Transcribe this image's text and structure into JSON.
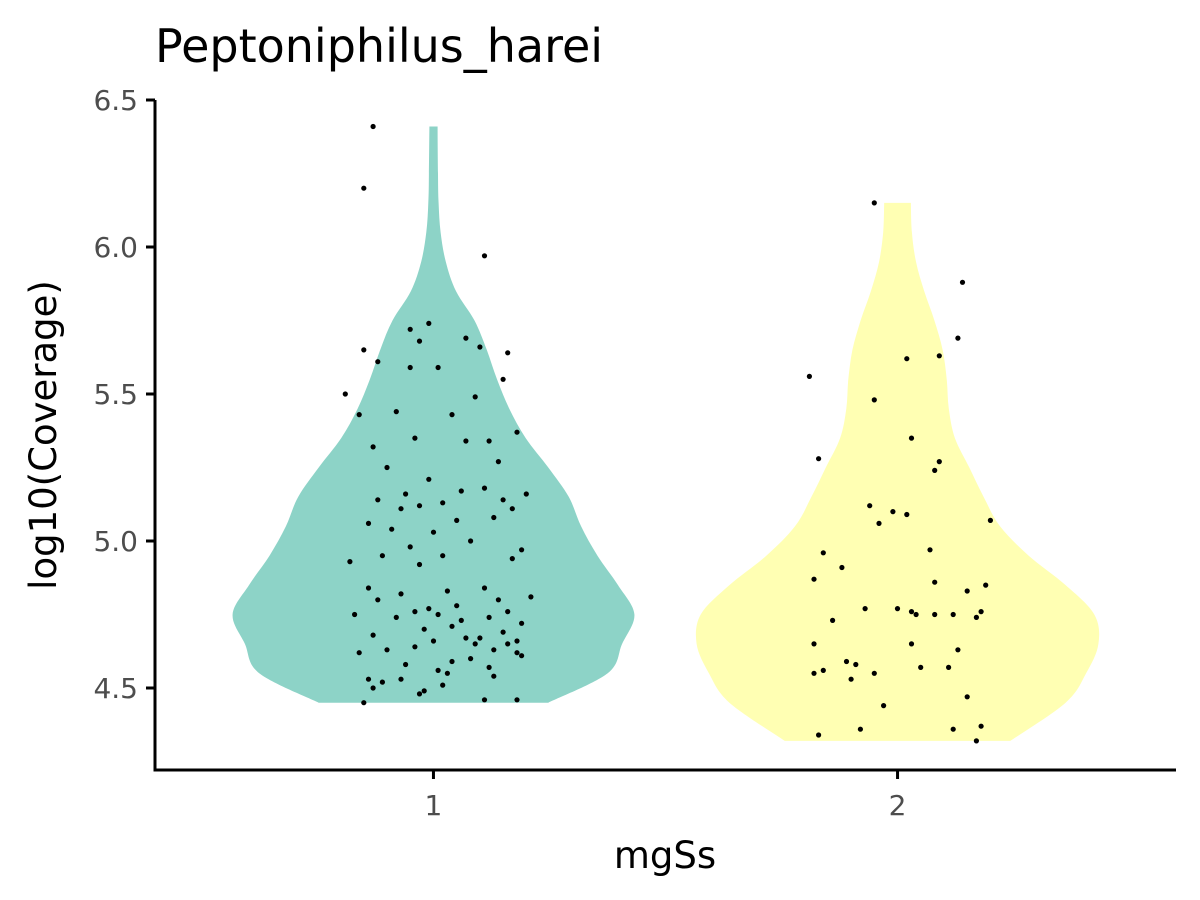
{
  "chart_data": {
    "type": "violin",
    "title": "Peptoniphilus_harei",
    "xlabel": "mgSs",
    "ylabel": "log10(Coverage)",
    "categories": [
      "1",
      "2"
    ],
    "ylim": [
      4.22,
      6.5
    ],
    "yticks": [
      4.5,
      5.0,
      5.5,
      6.0,
      6.5
    ],
    "ytick_labels": [
      "4.5",
      "5.0",
      "5.5",
      "6.0",
      "6.5"
    ],
    "grid": false,
    "legend": "none",
    "series": [
      {
        "category": "1",
        "color": "#8dd3c7",
        "y_range": [
          4.45,
          6.41
        ],
        "density": [
          [
            4.45,
            0.56
          ],
          [
            4.55,
            0.85
          ],
          [
            4.65,
            0.92
          ],
          [
            4.75,
            0.98
          ],
          [
            4.85,
            0.9
          ],
          [
            4.95,
            0.8
          ],
          [
            5.05,
            0.72
          ],
          [
            5.15,
            0.66
          ],
          [
            5.25,
            0.56
          ],
          [
            5.35,
            0.45
          ],
          [
            5.45,
            0.37
          ],
          [
            5.55,
            0.31
          ],
          [
            5.65,
            0.26
          ],
          [
            5.75,
            0.2
          ],
          [
            5.85,
            0.11
          ],
          [
            5.95,
            0.06
          ],
          [
            6.05,
            0.035
          ],
          [
            6.15,
            0.025
          ],
          [
            6.25,
            0.022
          ],
          [
            6.41,
            0.02
          ]
        ],
        "points": [
          [
            4.45,
            4.46,
            4.46,
            4.48,
            4.49,
            4.5,
            4.51,
            4.52,
            4.53,
            4.53,
            4.54,
            4.55,
            4.56,
            4.57,
            4.58,
            4.59,
            4.6,
            4.61,
            4.62,
            4.62,
            4.63,
            4.63,
            4.64,
            4.65,
            4.65,
            4.66,
            4.66,
            4.67,
            4.67,
            4.68,
            4.69,
            4.7,
            4.71,
            4.72,
            4.73,
            4.74,
            4.74,
            4.75,
            4.75,
            4.76,
            4.76,
            4.77,
            4.78,
            4.8,
            4.8,
            4.81,
            4.82,
            4.83,
            4.84,
            4.84,
            4.92,
            4.93,
            4.94,
            4.95,
            4.95,
            4.97,
            4.98,
            5.0,
            5.03,
            5.04,
            5.06,
            5.07,
            5.08,
            5.11,
            5.11,
            5.12,
            5.13,
            5.14,
            5.14,
            5.16,
            5.16,
            5.17,
            5.18,
            5.21,
            5.25,
            5.27,
            5.32,
            5.34,
            5.34,
            5.35,
            5.37,
            5.43,
            5.43,
            5.44,
            5.49,
            5.5,
            5.55,
            5.59,
            5.59,
            5.61,
            5.64,
            5.65,
            5.66,
            5.68,
            5.69,
            5.72,
            5.74,
            5.97,
            6.2,
            6.41
          ],
          [
            0.85,
            1.18,
            1.11,
            0.97,
            0.98,
            0.87,
            1.02,
            0.89,
            0.86,
            0.93,
            1.13,
            1.03,
            1.01,
            1.12,
            0.94,
            1.04,
            1.08,
            1.19,
            0.84,
            1.18,
            1.13,
            0.9,
            0.96,
            1.09,
            1.16,
            1.0,
            1.18,
            1.07,
            1.1,
            0.87,
            1.15,
            0.98,
            1.04,
            1.19,
            1.06,
            0.92,
            1.12,
            1.01,
            0.83,
            0.96,
            1.16,
            0.99,
            1.05,
            1.14,
            0.88,
            1.21,
            0.93,
            1.03,
            0.86,
            1.11,
            0.97,
            0.82,
            1.17,
            1.02,
            0.89,
            1.19,
            0.95,
            1.08,
            1.0,
            0.91,
            0.86,
            1.05,
            1.13,
            0.93,
            1.17,
            0.97,
            1.02,
            1.15,
            0.88,
            0.94,
            1.2,
            1.06,
            1.11,
            0.99,
            0.9,
            1.14,
            0.87,
            1.07,
            1.12,
            0.96,
            1.18,
            0.84,
            1.04,
            0.92,
            1.09,
            0.81,
            1.15,
            0.95,
            1.01,
            0.88,
            1.16,
            0.85,
            1.1,
            0.97,
            1.07,
            0.95,
            0.99,
            1.11,
            0.85,
            0.87
          ]
        ]
      },
      {
        "category": "2",
        "color": "#ffffb3",
        "y_range": [
          4.32,
          6.15
        ],
        "density": [
          [
            4.32,
            0.55
          ],
          [
            4.45,
            0.82
          ],
          [
            4.55,
            0.92
          ],
          [
            4.65,
            0.98
          ],
          [
            4.75,
            0.96
          ],
          [
            4.85,
            0.82
          ],
          [
            4.95,
            0.64
          ],
          [
            5.05,
            0.5
          ],
          [
            5.15,
            0.42
          ],
          [
            5.25,
            0.35
          ],
          [
            5.35,
            0.28
          ],
          [
            5.45,
            0.25
          ],
          [
            5.55,
            0.24
          ],
          [
            5.65,
            0.22
          ],
          [
            5.75,
            0.18
          ],
          [
            5.85,
            0.13
          ],
          [
            5.95,
            0.09
          ],
          [
            6.05,
            0.07
          ],
          [
            6.15,
            0.065
          ]
        ],
        "points": [
          [
            4.32,
            4.34,
            4.36,
            4.36,
            4.37,
            4.44,
            4.47,
            4.53,
            4.55,
            4.55,
            4.56,
            4.57,
            4.57,
            4.58,
            4.59,
            4.63,
            4.65,
            4.65,
            4.73,
            4.74,
            4.75,
            4.75,
            4.75,
            4.76,
            4.76,
            4.77,
            4.77,
            4.83,
            4.85,
            4.86,
            4.87,
            4.91,
            4.96,
            4.97,
            5.06,
            5.07,
            5.09,
            5.1,
            5.12,
            5.24,
            5.27,
            5.28,
            5.35,
            5.48,
            5.56,
            5.62,
            5.63,
            5.69,
            5.88,
            6.15
          ],
          [
            2.17,
            1.83,
            1.92,
            2.12,
            2.18,
            1.97,
            2.15,
            1.9,
            1.82,
            1.95,
            1.84,
            2.05,
            2.11,
            1.91,
            1.89,
            2.13,
            1.82,
            2.03,
            1.86,
            2.17,
            2.04,
            2.08,
            2.12,
            2.03,
            2.18,
            1.93,
            2.0,
            2.15,
            2.19,
            2.08,
            1.82,
            1.88,
            1.84,
            2.07,
            1.96,
            2.2,
            2.02,
            1.99,
            1.94,
            2.08,
            2.09,
            1.83,
            2.03,
            1.95,
            1.81,
            2.02,
            2.09,
            2.13,
            2.14,
            1.95
          ]
        ]
      }
    ]
  }
}
